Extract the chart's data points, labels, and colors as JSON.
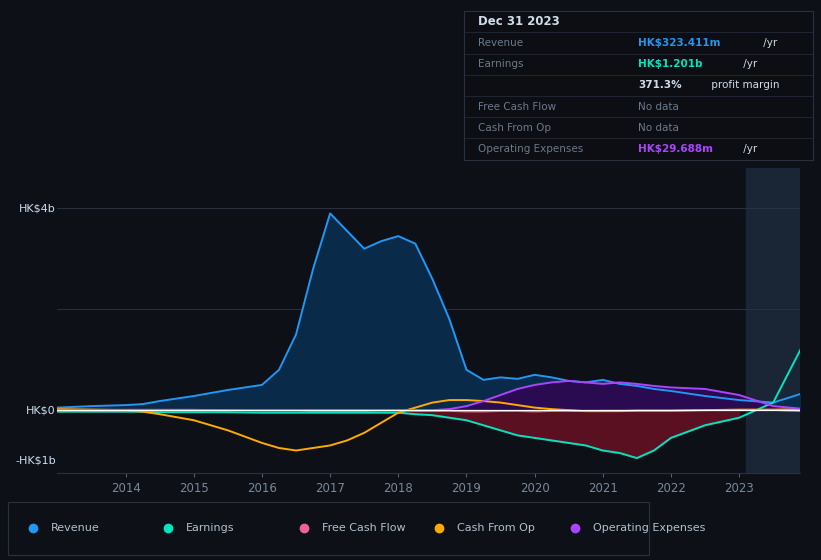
{
  "bg_color": "#0d1117",
  "plot_bg_color": "#0d1117",
  "grid_color": "#2a3040",
  "zero_line_color": "#ffffff",
  "ylim": [
    -1250000000.0,
    4800000000.0
  ],
  "ytick_labels": [
    "HK$4b",
    "HK$0",
    "-HK$1b"
  ],
  "ytick_values": [
    4000000000.0,
    0,
    -1000000000.0
  ],
  "xlabel_color": "#7a8899",
  "ylabel_color": "#ccddee",
  "years": [
    2013.0,
    2013.5,
    2014.0,
    2014.25,
    2014.5,
    2015.0,
    2015.5,
    2016.0,
    2016.25,
    2016.5,
    2016.75,
    2017.0,
    2017.25,
    2017.5,
    2017.75,
    2018.0,
    2018.25,
    2018.5,
    2018.75,
    2019.0,
    2019.25,
    2019.5,
    2019.75,
    2020.0,
    2020.25,
    2020.5,
    2020.75,
    2021.0,
    2021.25,
    2021.5,
    2021.75,
    2022.0,
    2022.5,
    2023.0,
    2023.5,
    2023.9
  ],
  "revenue": [
    50000000.0,
    80000000.0,
    100000000.0,
    120000000.0,
    180000000.0,
    280000000.0,
    400000000.0,
    500000000.0,
    800000000.0,
    1500000000.0,
    2800000000.0,
    3900000000.0,
    3550000000.0,
    3200000000.0,
    3350000000.0,
    3450000000.0,
    3300000000.0,
    2600000000.0,
    1800000000.0,
    800000000.0,
    600000000.0,
    650000000.0,
    620000000.0,
    700000000.0,
    650000000.0,
    580000000.0,
    550000000.0,
    600000000.0,
    520000000.0,
    480000000.0,
    420000000.0,
    380000000.0,
    280000000.0,
    200000000.0,
    150000000.0,
    320000000.0
  ],
  "earnings": [
    -30000000.0,
    -30000000.0,
    -30000000.0,
    -30000000.0,
    -40000000.0,
    -40000000.0,
    -40000000.0,
    -50000000.0,
    -50000000.0,
    -50000000.0,
    -50000000.0,
    -50000000.0,
    -50000000.0,
    -50000000.0,
    -50000000.0,
    -50000000.0,
    -80000000.0,
    -100000000.0,
    -150000000.0,
    -200000000.0,
    -300000000.0,
    -400000000.0,
    -500000000.0,
    -550000000.0,
    -600000000.0,
    -650000000.0,
    -700000000.0,
    -800000000.0,
    -850000000.0,
    -950000000.0,
    -800000000.0,
    -550000000.0,
    -300000000.0,
    -150000000.0,
    150000000.0,
    1200000000.0
  ],
  "free_cash_flow": [
    10000000.0,
    10000000.0,
    10000000.0,
    10000000.0,
    10000000.0,
    10000000.0,
    0.0,
    -10000000.0,
    -10000000.0,
    -10000000.0,
    -20000000.0,
    -20000000.0,
    -20000000.0,
    -20000000.0,
    -10000000.0,
    -10000000.0,
    -20000000.0,
    -20000000.0,
    -20000000.0,
    -30000000.0,
    -30000000.0,
    -20000000.0,
    -20000000.0,
    -30000000.0,
    -20000000.0,
    -20000000.0,
    -20000000.0,
    -10000000.0,
    -10000000.0,
    -10000000.0,
    -10000000.0,
    -10000000.0,
    0.0,
    0.0,
    0.0,
    -20000000.0
  ],
  "cash_from_op": [
    20000000.0,
    10000000.0,
    0.0,
    -30000000.0,
    -80000000.0,
    -200000000.0,
    -400000000.0,
    -650000000.0,
    -750000000.0,
    -800000000.0,
    -750000000.0,
    -700000000.0,
    -600000000.0,
    -450000000.0,
    -250000000.0,
    -50000000.0,
    50000000.0,
    150000000.0,
    200000000.0,
    200000000.0,
    180000000.0,
    150000000.0,
    100000000.0,
    50000000.0,
    20000000.0,
    0.0,
    -20000000.0,
    -20000000.0,
    -20000000.0,
    -10000000.0,
    -10000000.0,
    -10000000.0,
    0.0,
    10000000.0,
    10000000.0,
    20000000.0
  ],
  "op_expenses": [
    0.0,
    0.0,
    0.0,
    0.0,
    0.0,
    0.0,
    0.0,
    0.0,
    0.0,
    0.0,
    0.0,
    0.0,
    0.0,
    0.0,
    0.0,
    0.0,
    0.0,
    0.0,
    20000000.0,
    80000000.0,
    180000000.0,
    300000000.0,
    420000000.0,
    500000000.0,
    550000000.0,
    580000000.0,
    550000000.0,
    520000000.0,
    550000000.0,
    520000000.0,
    480000000.0,
    450000000.0,
    420000000.0,
    300000000.0,
    80000000.0,
    30000000.0
  ],
  "revenue_color": "#2196f3",
  "earnings_color": "#00e5c0",
  "fcf_color": "#f06292",
  "cash_color": "#ffaa00",
  "opex_color": "#aa44ff",
  "revenue_fill": "#0a2a4a",
  "earnings_fill": "#5a1020",
  "opex_fill": "#2a0a50",
  "xticks": [
    2014,
    2015,
    2016,
    2017,
    2018,
    2019,
    2020,
    2021,
    2022,
    2023
  ],
  "info_title": "Dec 31 2023",
  "info_revenue_label": "Revenue",
  "info_revenue_value": "HK$323.411m",
  "info_revenue_suffix": " /yr",
  "info_earnings_label": "Earnings",
  "info_earnings_value": "HK$1.201b",
  "info_earnings_suffix": " /yr",
  "info_margin_bold": "371.3%",
  "info_margin_text": " profit margin",
  "info_fcf_label": "Free Cash Flow",
  "info_fcf_value": "No data",
  "info_cash_label": "Cash From Op",
  "info_cash_value": "No data",
  "info_opex_label": "Operating Expenses",
  "info_opex_value": "HK$29.688m",
  "info_opex_suffix": " /yr",
  "legend_items": [
    "Revenue",
    "Earnings",
    "Free Cash Flow",
    "Cash From Op",
    "Operating Expenses"
  ],
  "legend_colors": [
    "#2196f3",
    "#00e5c0",
    "#f06292",
    "#ffaa00",
    "#aa44ff"
  ]
}
